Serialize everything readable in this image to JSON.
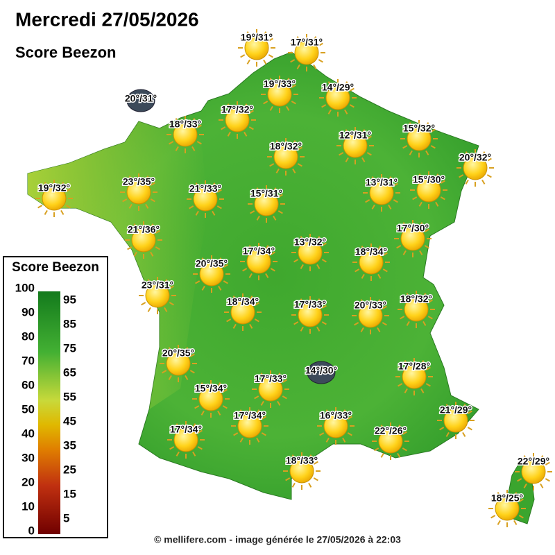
{
  "header": {
    "title": "Mercredi 27/05/2026",
    "subtitle": "Score Beezon"
  },
  "stations": [
    "19°/31°",
    "17°/31°",
    "20°/31°",
    "19°/33°",
    "14°/29°",
    "17°/32°",
    "18°/33°",
    "18°/32°",
    "12°/31°",
    "15°/32°",
    "20°/32°",
    "19°/32°",
    "23°/35°",
    "21°/33°",
    "15°/31°",
    "13°/31°",
    "15°/30°",
    "21°/36°",
    "17°/30°",
    "17°/34°",
    "13°/32°",
    "18°/34°",
    "20°/35°",
    "23°/31°",
    "18°/34°",
    "17°/33°",
    "20°/33°",
    "18°/32°",
    "20°/35°",
    "14°/30°",
    "17°/28°",
    "15°/34°",
    "17°/33°",
    "21°/29°",
    "17°/34°",
    "16°/33°",
    "17°/34°",
    "22°/26°",
    "18°/33°",
    "22°/29°",
    "18°/25°"
  ],
  "legend": {
    "title": "Score Beezon",
    "scale_labels": [
      100,
      90,
      80,
      70,
      60,
      50,
      40,
      30,
      20,
      10,
      0
    ],
    "band_labels": [
      95,
      85,
      75,
      65,
      55,
      45,
      35,
      25,
      15,
      5
    ]
  },
  "footer": "© mellifere.com - image générée le 27/05/2026 à 22:03"
}
